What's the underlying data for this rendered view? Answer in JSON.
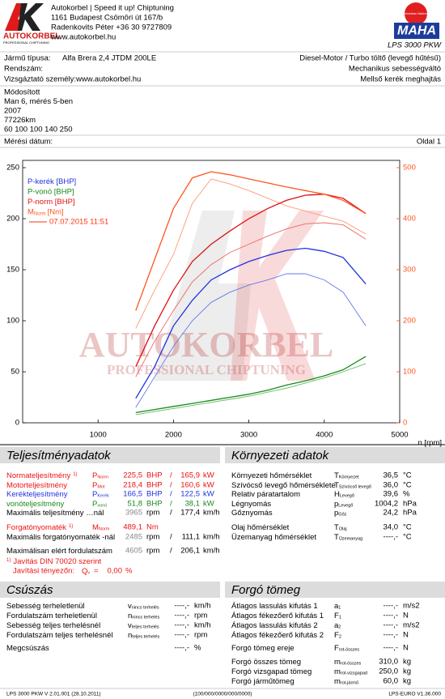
{
  "header": {
    "company_lines": [
      "Autokorbel | Speed it up! Chiptuning",
      "1161 Budapest Csömöri út 167/b",
      "Radenkovits Péter +36 30 9727809",
      "www.autokorbel.hu"
    ],
    "logo_text": "AUTOKORBEL",
    "logo_sub": "PROFESSIONAL CHIPTUNING",
    "maha_text": "MAHA",
    "maha_ring": "Maschinenbau Haldenwang",
    "product": "LPS 3000 PKW"
  },
  "vehicle": {
    "rows": [
      {
        "label": "Jármű típusa:",
        "value": "Alfa Brera 2,4 JTDM 200LE",
        "right": "Diesel-Motor / Turbo töltő (levegő hűtésű)"
      },
      {
        "label": "Rendszám:",
        "right": "Mechanikus sebességváltó"
      },
      {
        "label": "Vizsgáztató személy:www.autokorbel.hu",
        "right": "Mellső kerék meghajtás"
      }
    ]
  },
  "notes": [
    "Módosított",
    "Man 6, mérés 5-ben",
    "2007",
    "77226km",
    "60 100 100 140 250"
  ],
  "measurement": {
    "label": "Mérési dátum:",
    "page": "Oldal 1"
  },
  "chart": {
    "x_label": "n [rpm]",
    "xlim": [
      0,
      5000
    ],
    "xticks": [
      1000,
      2000,
      3000,
      4000,
      5000
    ],
    "ylim": [
      0,
      250
    ],
    "yticks": [
      0,
      50,
      100,
      150,
      200,
      250
    ],
    "y2lim": [
      0,
      500
    ],
    "y2ticks": [
      0,
      100,
      200,
      300,
      400,
      500
    ],
    "y2_color": "#ff5522",
    "x": [
      1500,
      1750,
      2000,
      2250,
      2500,
      2750,
      3000,
      3250,
      3500,
      3750,
      4000,
      4250,
      4550
    ],
    "series": [
      {
        "name": "P-kerék [BHP]",
        "color": "#2233dd",
        "values": [
          24,
          55,
          95,
          120,
          140,
          150,
          158,
          164,
          169,
          171,
          168,
          162,
          136
        ]
      },
      {
        "name": "P-vonó [BHP]",
        "color": "#1a8a1a",
        "values": [
          10,
          13,
          16,
          19,
          22,
          25,
          28,
          32,
          37,
          41,
          46,
          52,
          65
        ]
      },
      {
        "name": "P-norm [BHP]",
        "color": "#dd1111",
        "values": [
          55,
          95,
          130,
          158,
          175,
          188,
          200,
          210,
          218,
          223,
          224,
          220,
          205
        ]
      },
      {
        "name": "M",
        "name_sub": "Norm",
        "name_suffix": "[Nm]",
        "color": "#ff5522",
        "axis": "y2",
        "values": [
          220,
          320,
          420,
          480,
          492,
          486,
          478,
          470,
          462,
          455,
          448,
          436,
          410
        ]
      }
    ],
    "comparison": [
      {
        "color": "#6677ee",
        "values": [
          15,
          45,
          75,
          100,
          118,
          128,
          135,
          140,
          146,
          146,
          140,
          128,
          95
        ]
      },
      {
        "color": "#66bb66",
        "values": [
          8,
          11,
          14,
          17,
          20,
          23,
          26,
          30,
          34,
          39,
          44,
          50,
          58
        ]
      },
      {
        "color": "#ee6666",
        "values": [
          45,
          80,
          110,
          138,
          155,
          167,
          175,
          183,
          190,
          195,
          196,
          194,
          180
        ]
      },
      {
        "color": "#ff9977",
        "axis": "y2",
        "values": [
          185,
          260,
          330,
          430,
          478,
          468,
          455,
          440,
          425,
          415,
          405,
          395,
          370
        ]
      }
    ],
    "legend_date": "07.07.2015 11:51",
    "legend_date_color": "#ff3311",
    "watermark": [
      "AUTOKORBEL",
      "PROFESSIONAL CHIPTUNING"
    ]
  },
  "power": {
    "title": "Teljesítményadatok",
    "rows": [
      {
        "label": "Normateljesítmény",
        "note": "1)",
        "symbol": {
          "base": "P",
          "sub": "Norm"
        },
        "value": "225,5",
        "unit": "BHP",
        "sep": "/",
        "value2": "165,9",
        "unit2": "kW",
        "color": "#ee1111"
      },
      {
        "label": "Motorteljesítmény",
        "symbol": {
          "base": "P",
          "sub": "Mot"
        },
        "value": "218,4",
        "unit": "BHP",
        "sep": "/",
        "value2": "160,6",
        "unit2": "kW",
        "color": "#ee1111"
      },
      {
        "label": "Kerékteljesítmény",
        "symbol": {
          "base": "P",
          "sub": "Kerék"
        },
        "value": "166,5",
        "unit": "BHP",
        "sep": "/",
        "value2": "122,5",
        "unit2": "kW",
        "color": "#2233dd"
      },
      {
        "label": "vonóteljesítmény",
        "symbol": {
          "base": "P",
          "sub": "vonó"
        },
        "value": "51,8",
        "unit": "BHP",
        "sep": "/",
        "value2": "38,1",
        "unit2": "kW",
        "color": "#1a8a1a"
      },
      {
        "label": "Maximális teljesítmény …nál",
        "value": "3965",
        "value_color": "#888888",
        "unit": "rpm",
        "sep": "/",
        "value2": "177,4",
        "unit2": "km/h"
      },
      {
        "label": "Forgatónyomaték",
        "note": "1)",
        "symbol": {
          "base": "M",
          "sub": "Norm"
        },
        "value": "489,1",
        "unit": "Nm",
        "color": "#ee1111"
      },
      {
        "label": "Maximális forgatónyomaték -nál",
        "value": "2485",
        "value_color": "#888888",
        "unit": "rpm",
        "sep": "/",
        "value2": "111,1",
        "unit2": "km/h"
      },
      {
        "label": "Maximálisan elért fordulatszám",
        "value": "4605",
        "value_color": "#888888",
        "unit": "rpm",
        "sep": "/",
        "value2": "206,1",
        "unit2": "km/h"
      }
    ],
    "footnote": {
      "mark": "1)",
      "text": "Javítás DIN 70020 szerint"
    },
    "correction": {
      "label": "Javítási tényezőn:",
      "symbol": {
        "base": "Q",
        "sub": "v"
      },
      "eq": "=",
      "value": "0,00",
      "unit": "%"
    },
    "footnote_color": "#ee1111"
  },
  "environment": {
    "title": "Környezeti adatok",
    "rows": [
      {
        "label": "Környezeti hőmérséklet",
        "symbol": {
          "base": "T",
          "sub": "Környezet"
        },
        "value": "36,5",
        "unit": "°C"
      },
      {
        "label": "Szívócső levegő hőmérséklete",
        "symbol": {
          "base": "T",
          "sub": "Szívócső levegő"
        },
        "value": "36,0",
        "unit": "°C"
      },
      {
        "label": "Relativ páratartalom",
        "symbol": {
          "base": "H",
          "sub": "Levegő"
        },
        "value": "39,6",
        "unit": "%"
      },
      {
        "label": "Légnyomás",
        "symbol": {
          "base": "p",
          "sub": "Levegő"
        },
        "value": "1004,2",
        "unit": "hPa"
      },
      {
        "label": "Gőznyomás",
        "symbol": {
          "base": "p",
          "sub": "Gőz"
        },
        "value": "24,2",
        "unit": "hPa"
      },
      {
        "label": "Olaj hőmérséklet",
        "symbol": {
          "base": "T",
          "sub": "Olaj"
        },
        "value": "34,0",
        "unit": "°C"
      },
      {
        "label": "Üzemanyag hőmérséklet",
        "symbol": {
          "base": "T",
          "sub": "Üzemanyag"
        },
        "value": "----,-",
        "unit": "°C"
      }
    ]
  },
  "slip": {
    "title": "Csúszás",
    "rows": [
      {
        "label": "Sebesség terheletlenül",
        "symbol": {
          "base": "v",
          "sub": "nincs terhelés"
        },
        "value": "----,-",
        "unit": "km/h"
      },
      {
        "label": "Fordulatszám terheletlenül",
        "symbol": {
          "base": "n",
          "sub": "nincs terhelés"
        },
        "value": "----,-",
        "unit": "rpm"
      },
      {
        "label": "Sebesség teljes terhelésnél",
        "symbol": {
          "base": "v",
          "sub": "teljes terhelés"
        },
        "value": "----,-",
        "unit": "km/h"
      },
      {
        "label": "Fordulatszám teljes terhelésnél",
        "symbol": {
          "base": "n",
          "sub": "teljes terhelés"
        },
        "value": "----,-",
        "unit": "rpm"
      },
      {
        "label": "Megcsúszás",
        "value": "----,-",
        "unit": "%"
      }
    ]
  },
  "rotating_mass": {
    "title": "Forgó tömeg",
    "rows": [
      {
        "label": "Átlagos lassulás kifutás 1",
        "symbol": {
          "base": "a",
          "sub": "1"
        },
        "value": "----,-",
        "unit": "m/s2"
      },
      {
        "label": "Átlagos fékezőerő kifutás 1",
        "symbol": {
          "base": "F",
          "sub": "1"
        },
        "value": "----,-",
        "unit": "N"
      },
      {
        "label": "Átlagos lassulás kifutás 2",
        "symbol": {
          "base": "a",
          "sub": "2"
        },
        "value": "----,-",
        "unit": "m/s2"
      },
      {
        "label": "Átlagos fékezőerő kifutás 2",
        "symbol": {
          "base": "F",
          "sub": "2"
        },
        "value": "----,-",
        "unit": "N"
      },
      {
        "label": "Forgó tömeg ereje",
        "symbol": {
          "base": "F",
          "sub": "rot-összes"
        },
        "value": "----,-",
        "unit": "N"
      },
      {
        "label": "Forgó összes tömeg",
        "symbol": {
          "base": "m",
          "sub": "rot-összes"
        },
        "value": "310,0",
        "unit": "kg"
      },
      {
        "label": "Forgó vizsgapad tömeg",
        "symbol": {
          "base": "m",
          "sub": "rot-vizsgapad"
        },
        "value": "250,0",
        "unit": "kg"
      },
      {
        "label": "Forgó járműtömeg",
        "symbol": {
          "base": "m",
          "sub": "rot-jármű"
        },
        "value": "60,0",
        "unit": "kg"
      }
    ]
  },
  "footer": {
    "left": "LPS 3000 PKW V 2.01.001 (28.10.2011)",
    "center": "(100/000/0000/000/0000)",
    "right": "LPS-EURO V1.36.000"
  }
}
